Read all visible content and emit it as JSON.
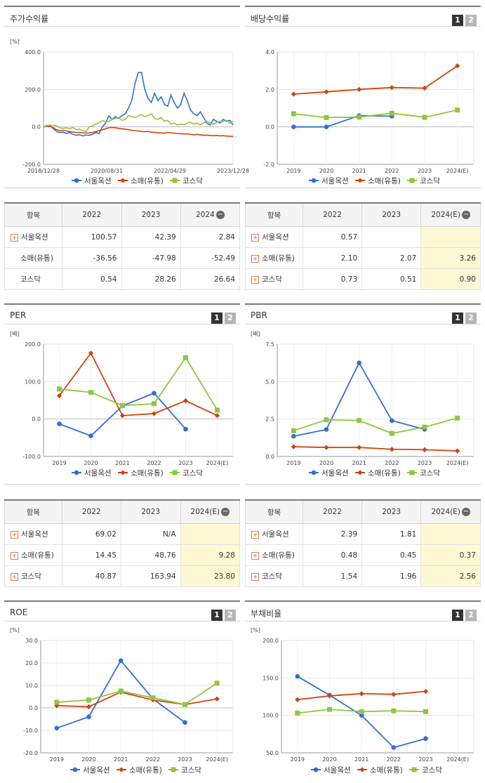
{
  "panels": {
    "stock": {
      "title": "주가수익률",
      "unit": "[%]"
    },
    "dividend": {
      "title": "배당수익률",
      "unit": "",
      "btn1": "1",
      "btn2": "2"
    },
    "per": {
      "title": "PER",
      "unit": "[배]",
      "btn1": "1",
      "btn2": "2"
    },
    "pbr": {
      "title": "PBR",
      "unit": "[배]",
      "btn1": "1",
      "btn2": "2"
    },
    "roe": {
      "title": "ROE",
      "unit": "[%]",
      "btn1": "1",
      "btn2": "2"
    },
    "debt": {
      "title": "부채비율",
      "unit": "[%]",
      "btn1": "1",
      "btn2": "2"
    }
  },
  "colors": {
    "seoul": "#2f6fd6",
    "retail": "#d2420e",
    "kosdaq": "#8ec63f"
  },
  "tables": {
    "stock": {
      "headers": [
        "항목",
        "2022",
        "2023",
        "2024"
      ],
      "rows": [
        {
          "name": "서울옥션",
          "plus": true,
          "values": [
            "100.57",
            "42.39",
            "2.84"
          ]
        },
        {
          "name": "소매(유통)",
          "plus": false,
          "values": [
            "-36.56",
            "-47.98",
            "-52.49"
          ]
        },
        {
          "name": "코스닥",
          "plus": false,
          "values": [
            "0.54",
            "28.26",
            "26.64"
          ]
        }
      ]
    },
    "dividend": {
      "headers": [
        "항목",
        "2022",
        "2023",
        "2024(E)"
      ],
      "rows": [
        {
          "name": "서울옥션",
          "plus": true,
          "values": [
            "0.57",
            "",
            ""
          ]
        },
        {
          "name": "소매(유통)",
          "plus": true,
          "values": [
            "2.10",
            "2.07",
            "3.26"
          ]
        },
        {
          "name": "코스닥",
          "plus": true,
          "values": [
            "0.73",
            "0.51",
            "0.90"
          ]
        }
      ]
    },
    "per": {
      "headers": [
        "항목",
        "2022",
        "2023",
        "2024(E)"
      ],
      "rows": [
        {
          "name": "서울옥션",
          "plus": true,
          "values": [
            "69.02",
            "N/A",
            ""
          ]
        },
        {
          "name": "소매(유통)",
          "plus": true,
          "values": [
            "14.45",
            "48.76",
            "9.28"
          ]
        },
        {
          "name": "코스닥",
          "plus": true,
          "values": [
            "40.87",
            "163.94",
            "23.80"
          ]
        }
      ]
    },
    "pbr": {
      "headers": [
        "항목",
        "2022",
        "2023",
        "2024(E)"
      ],
      "rows": [
        {
          "name": "서울옥션",
          "plus": true,
          "values": [
            "2.39",
            "1.81",
            ""
          ]
        },
        {
          "name": "소매(유통)",
          "plus": true,
          "values": [
            "0.48",
            "0.45",
            "0.37"
          ]
        },
        {
          "name": "코스닥",
          "plus": true,
          "values": [
            "1.54",
            "1.96",
            "2.56"
          ]
        }
      ]
    }
  },
  "chart_data": [
    {
      "id": "stock",
      "type": "line",
      "title": "주가수익률",
      "ylabel": "[%]",
      "ylim": [
        -200,
        400
      ],
      "yticks": [
        "400.0",
        "200.0",
        "0.0",
        "-200.0"
      ],
      "ytick_values": [
        400,
        200,
        0,
        -200
      ],
      "xtick_labels": [
        "2018/12/28",
        "2020/08/31",
        "2022/04/29",
        "2023/12/28"
      ],
      "legend": [
        "서울옥션",
        "소매(유통)",
        "코스닥"
      ],
      "series": [
        {
          "name": "서울옥션",
          "color": "#2f6fd6",
          "values": [
            0,
            8,
            5,
            -10,
            -25,
            -30,
            -28,
            -35,
            -30,
            -40,
            -45,
            -42,
            -48,
            -44,
            -45,
            -40,
            -30,
            -35,
            0,
            20,
            60,
            40,
            55,
            45,
            60,
            70,
            100,
            140,
            230,
            290,
            290,
            200,
            150,
            130,
            180,
            140,
            160,
            120,
            110,
            170,
            130,
            100,
            120,
            180,
            140,
            90,
            70,
            60,
            80,
            50,
            20,
            10,
            40,
            30,
            20,
            40,
            30,
            35,
            10
          ]
        },
        {
          "name": "소매(유통)",
          "color": "#d2420e",
          "values": [
            0,
            2,
            3,
            -5,
            -15,
            -20,
            -18,
            -22,
            -25,
            -28,
            -30,
            -30,
            -32,
            -33,
            -32,
            -30,
            -25,
            -20,
            -15,
            -10,
            -5,
            -3,
            -5,
            -8,
            -10,
            -12,
            -15,
            -18,
            -20,
            -22,
            -25,
            -26,
            -24,
            -28,
            -30,
            -30,
            -32,
            -33,
            -30,
            -32,
            -34,
            -35,
            -36,
            -38,
            -37,
            -40,
            -42,
            -40,
            -43,
            -45,
            -44,
            -46,
            -47,
            -46,
            -48,
            -47,
            -49,
            -50,
            -51
          ]
        },
        {
          "name": "코스닥",
          "color": "#8ec63f",
          "values": [
            0,
            5,
            10,
            8,
            5,
            -5,
            -8,
            -5,
            -10,
            -3,
            -15,
            -12,
            -20,
            -25,
            0,
            5,
            15,
            20,
            35,
            25,
            30,
            40,
            45,
            50,
            35,
            40,
            60,
            55,
            50,
            60,
            65,
            55,
            60,
            70,
            45,
            40,
            50,
            30,
            35,
            15,
            20,
            10,
            15,
            12,
            20,
            25,
            15,
            20,
            10,
            22,
            30,
            20,
            15,
            25,
            30,
            28,
            35,
            20,
            30
          ]
        }
      ]
    },
    {
      "id": "dividend",
      "type": "line",
      "title": "배당수익률",
      "ylim": [
        -2,
        4
      ],
      "yticks": [
        "4.0",
        "2.0",
        "0.0",
        "-2.0"
      ],
      "ytick_values": [
        4,
        2,
        0,
        -2
      ],
      "categories": [
        "2019",
        "2020",
        "2021",
        "2022",
        "2023",
        "2024(E)"
      ],
      "legend": [
        "서울옥션",
        "소매(유통)",
        "코스닥"
      ],
      "series": [
        {
          "name": "서울옥션",
          "color": "#2f6fd6",
          "values": [
            0.0,
            0.0,
            0.6,
            0.57,
            null,
            null
          ]
        },
        {
          "name": "소매(유통)",
          "color": "#d2420e",
          "values": [
            1.75,
            1.87,
            2.0,
            2.1,
            2.07,
            3.26
          ]
        },
        {
          "name": "코스닥",
          "color": "#8ec63f",
          "values": [
            0.7,
            0.5,
            0.52,
            0.73,
            0.51,
            0.9
          ]
        }
      ]
    },
    {
      "id": "per",
      "type": "line",
      "title": "PER",
      "ylabel": "[배]",
      "ylim": [
        -100,
        200
      ],
      "yticks": [
        "200.0",
        "100.0",
        "0.0",
        "-100.0"
      ],
      "ytick_values": [
        200,
        100,
        0,
        -100
      ],
      "categories": [
        "2019",
        "2020",
        "2021",
        "2022",
        "2023",
        "2024(E)"
      ],
      "legend": [
        "서울옥션",
        "소매(유통)",
        "코스닥"
      ],
      "series": [
        {
          "name": "서울옥션",
          "color": "#2f6fd6",
          "values": [
            -13,
            -45,
            35,
            69.02,
            -27,
            null
          ]
        },
        {
          "name": "소매(유통)",
          "color": "#d2420e",
          "values": [
            62,
            176,
            9,
            14.45,
            48.76,
            9.28
          ]
        },
        {
          "name": "코스닥",
          "color": "#8ec63f",
          "values": [
            80,
            71,
            36,
            40.87,
            163.94,
            23.8
          ]
        }
      ]
    },
    {
      "id": "pbr",
      "type": "line",
      "title": "PBR",
      "ylabel": "[배]",
      "ylim": [
        0,
        7.5
      ],
      "yticks": [
        "7.5",
        "5.0",
        "2.5",
        "0.0"
      ],
      "ytick_values": [
        7.5,
        5,
        2.5,
        0
      ],
      "categories": [
        "2019",
        "2020",
        "2021",
        "2022",
        "2023",
        "2024(E)"
      ],
      "legend": [
        "서울옥션",
        "소매(유통)",
        "코스닥"
      ],
      "series": [
        {
          "name": "서울옥션",
          "color": "#2f6fd6",
          "values": [
            1.35,
            1.8,
            6.25,
            2.39,
            1.81,
            null
          ]
        },
        {
          "name": "소매(유통)",
          "color": "#d2420e",
          "values": [
            0.65,
            0.6,
            0.6,
            0.48,
            0.45,
            0.37
          ]
        },
        {
          "name": "코스닥",
          "color": "#8ec63f",
          "values": [
            1.72,
            2.45,
            2.4,
            1.54,
            1.96,
            2.56
          ]
        }
      ]
    },
    {
      "id": "roe",
      "type": "line",
      "title": "ROE",
      "ylabel": "[%]",
      "ylim": [
        -20,
        30
      ],
      "yticks": [
        "30.0",
        "20.0",
        "10.0",
        "0.0",
        "-10.0",
        "-20.0"
      ],
      "ytick_values": [
        30,
        20,
        10,
        0,
        -10,
        -20
      ],
      "categories": [
        "2019",
        "2020",
        "2021",
        "2022",
        "2023",
        "2024(E)"
      ],
      "legend": [
        "서울옥션",
        "소매(유통)",
        "코스닥"
      ],
      "series": [
        {
          "name": "서울옥션",
          "color": "#2f6fd6",
          "values": [
            -9,
            -4,
            21,
            4,
            -6.5,
            null
          ]
        },
        {
          "name": "소매(유통)",
          "color": "#d2420e",
          "values": [
            1,
            0.5,
            7,
            3.5,
            1.5,
            4
          ]
        },
        {
          "name": "코스닥",
          "color": "#8ec63f",
          "values": [
            2.5,
            3.5,
            7.5,
            4.5,
            1.5,
            11
          ]
        }
      ]
    },
    {
      "id": "debt",
      "type": "line",
      "title": "부채비율",
      "ylabel": "[%]",
      "ylim": [
        50,
        200
      ],
      "yticks": [
        "200.0",
        "150.0",
        "100.0",
        "50.0"
      ],
      "ytick_values": [
        200,
        150,
        100,
        50
      ],
      "categories": [
        "2019",
        "2020",
        "2021",
        "2022",
        "2023",
        "2024(E)"
      ],
      "legend": [
        "서울옥션",
        "소매(유통)",
        "코스닥"
      ],
      "series": [
        {
          "name": "서울옥션",
          "color": "#2f6fd6",
          "values": [
            152,
            127,
            100,
            57,
            69,
            null
          ]
        },
        {
          "name": "소매(유통)",
          "color": "#d2420e",
          "values": [
            121,
            126,
            129,
            128,
            132,
            null
          ]
        },
        {
          "name": "코스닥",
          "color": "#8ec63f",
          "values": [
            103,
            108,
            105,
            106,
            105,
            null
          ]
        }
      ]
    }
  ]
}
